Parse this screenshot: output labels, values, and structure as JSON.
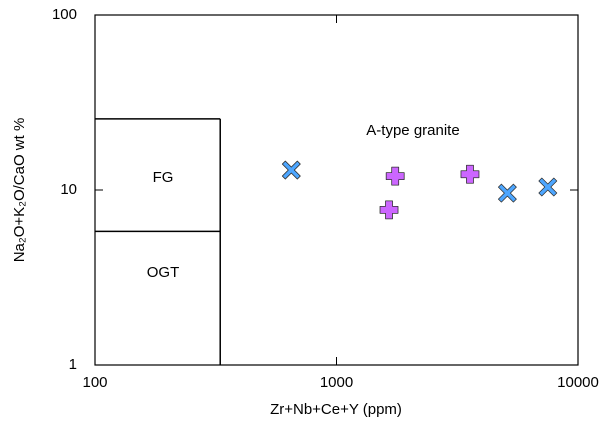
{
  "chart_data": {
    "type": "scatter",
    "x_label": "Zr+Nb+Ce+Y (ppm)",
    "y_label": "Na₂O+K₂O/CaO wt %",
    "xlim": [
      100,
      10000
    ],
    "ylim": [
      1,
      100
    ],
    "xticks": [
      100,
      1000,
      10000
    ],
    "yticks": [
      1,
      10,
      100
    ],
    "log_x": true,
    "log_y": true,
    "fields": {
      "labels": [
        "FG",
        "OGT",
        "A-type granite"
      ],
      "x_boundary": 330,
      "y_upper": 25.5,
      "y_lower": 5.8
    },
    "series": [
      {
        "marker": "x",
        "color": "#4da6ff",
        "x": [
          650,
          5100,
          7500
        ],
        "values": [
          13.0,
          9.6,
          10.4
        ]
      },
      {
        "marker": "plus",
        "color": "#cc66ff",
        "x": [
          1750,
          1650,
          3570
        ],
        "values": [
          12.0,
          7.7,
          12.3
        ]
      }
    ]
  }
}
